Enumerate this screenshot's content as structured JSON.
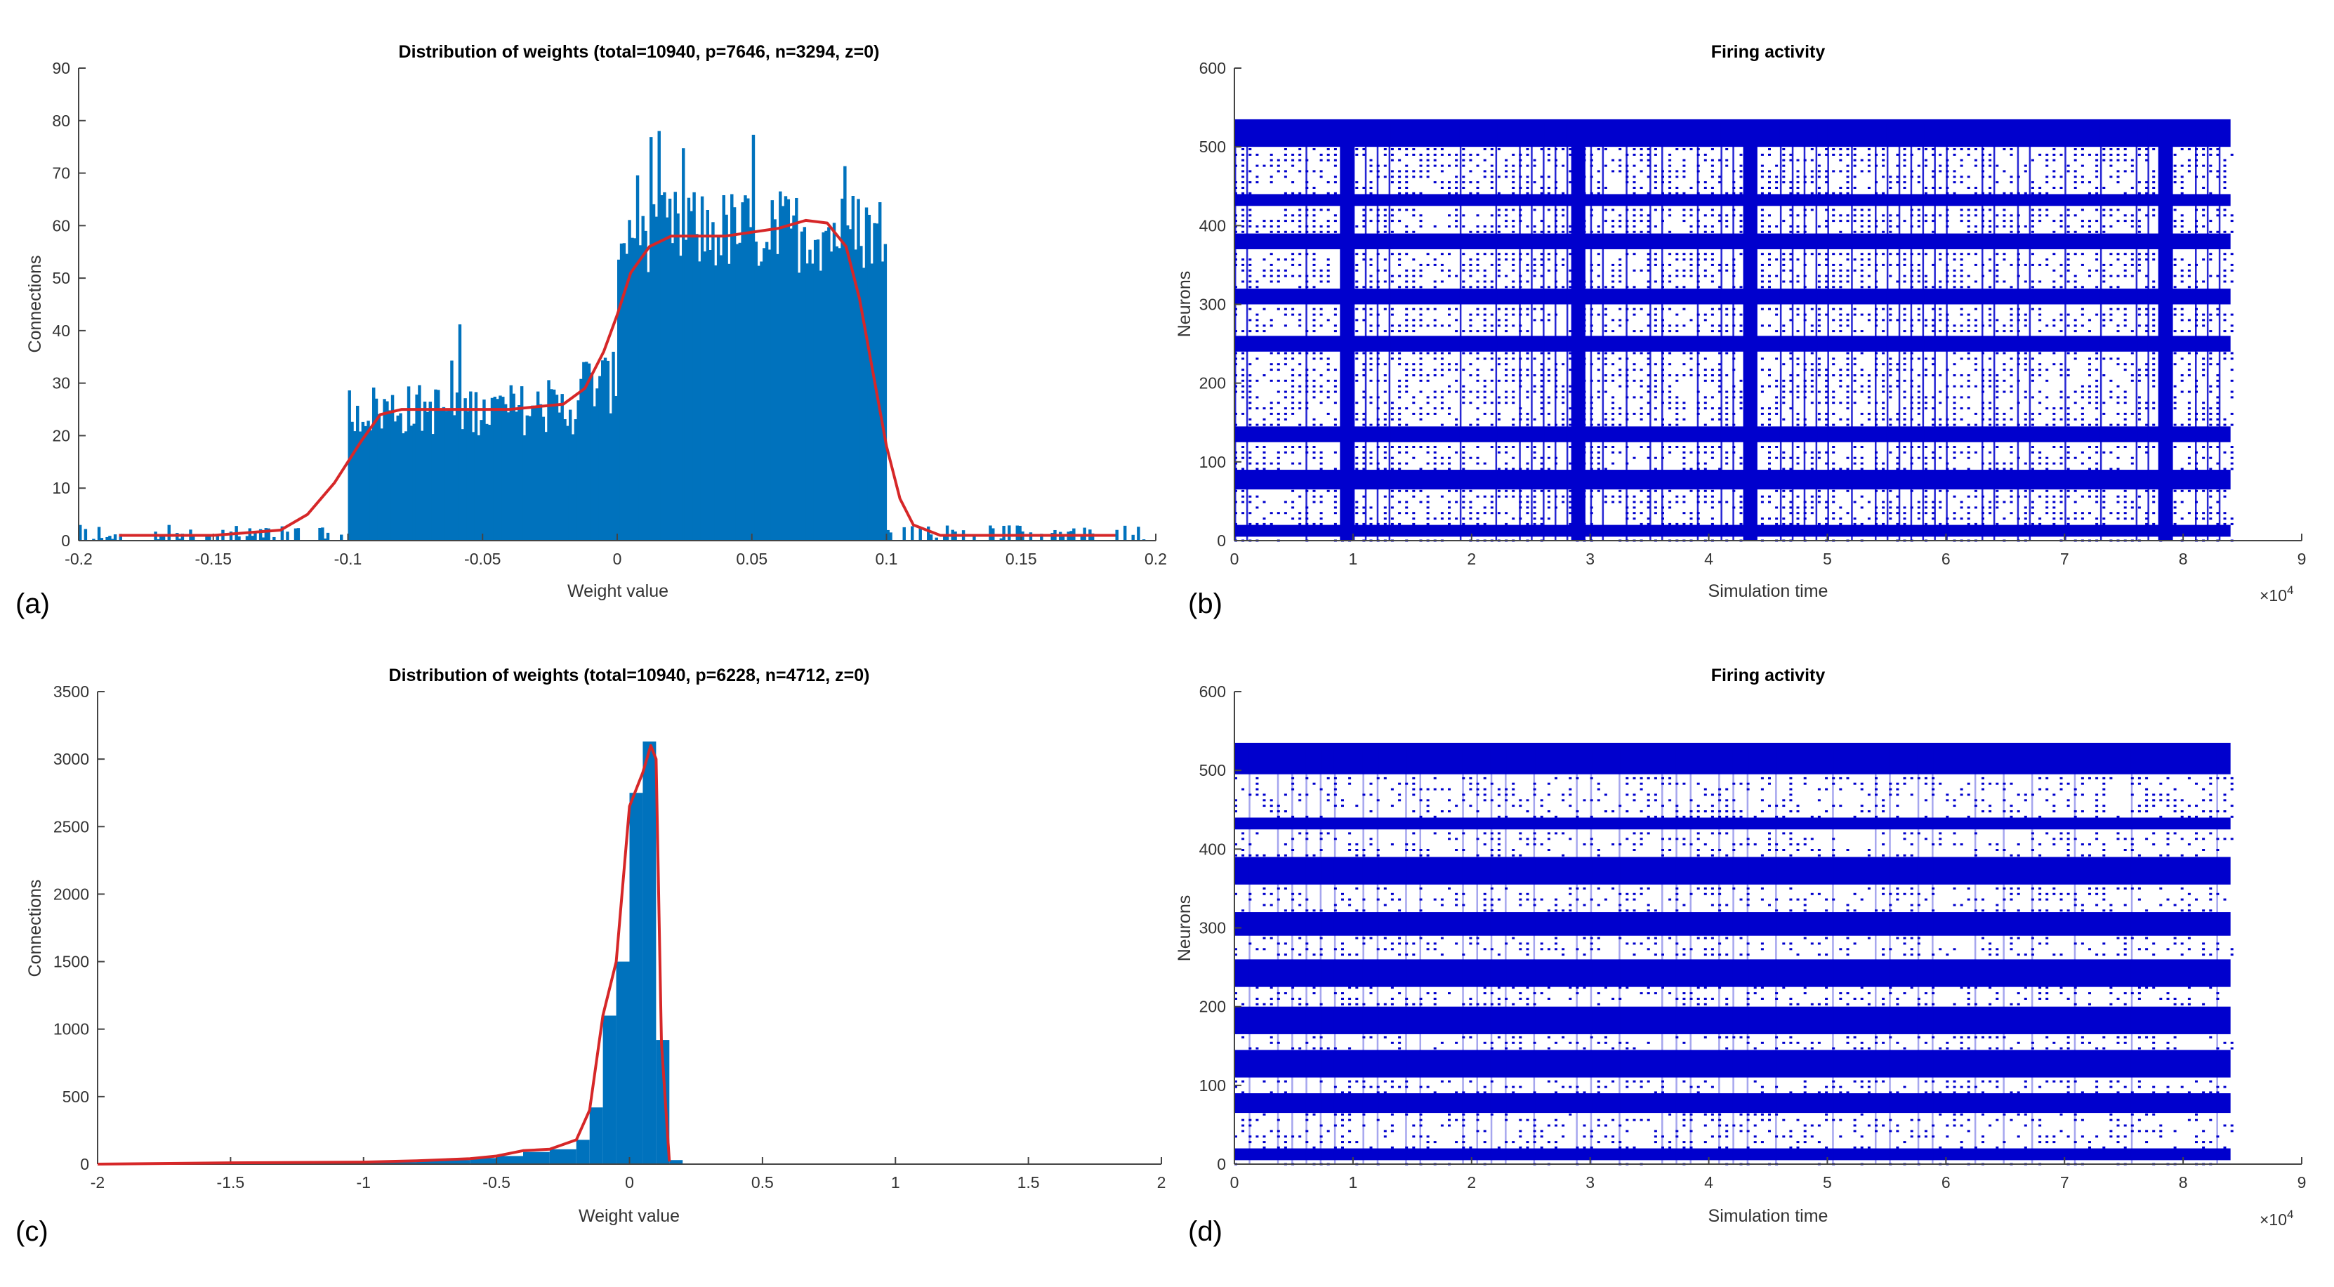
{
  "panel_labels": [
    "(a)",
    "(b)",
    "(c)",
    "(d)"
  ],
  "chart_data": [
    {
      "id": "a",
      "type": "bar",
      "title": "Distribution of weights (total=10940, p=7646, n=3294, z=0)",
      "xlabel": "Weight value",
      "ylabel": "Connections",
      "xlim": [
        -0.2,
        0.2
      ],
      "ylim": [
        0,
        90
      ],
      "xticks": [
        -0.2,
        -0.15,
        -0.1,
        -0.05,
        0,
        0.05,
        0.1,
        0.15,
        0.2
      ],
      "xtick_labels": [
        "-0.2",
        "-0.15",
        "-0.1",
        "-0.05",
        "0",
        "0.05",
        "0.1",
        "0.15",
        "0.2"
      ],
      "yticks": [
        0,
        10,
        20,
        30,
        40,
        50,
        60,
        70,
        80,
        90
      ],
      "ytick_labels": [
        "0",
        "10",
        "20",
        "30",
        "40",
        "50",
        "60",
        "70",
        "80",
        "90"
      ],
      "bar_color": "#0072bd",
      "curve_color": "#d62728",
      "histogram_segments": [
        {
          "from": -0.2,
          "to": -0.1,
          "mean": 1,
          "spread": 1.5
        },
        {
          "from": -0.1,
          "to": -0.015,
          "mean": 25,
          "spread": 5
        },
        {
          "from": -0.015,
          "to": 0.0,
          "mean": 30,
          "spread": 6
        },
        {
          "from": 0.0,
          "to": 0.1,
          "mean": 59,
          "spread": 8
        },
        {
          "from": 0.1,
          "to": 0.2,
          "mean": 1,
          "spread": 1.5
        }
      ],
      "curve": {
        "x": [
          -0.185,
          -0.15,
          -0.125,
          -0.115,
          -0.105,
          -0.095,
          -0.088,
          -0.08,
          -0.06,
          -0.04,
          -0.02,
          -0.012,
          -0.005,
          0.0,
          0.005,
          0.012,
          0.02,
          0.04,
          0.06,
          0.07,
          0.078,
          0.085,
          0.09,
          0.095,
          0.1,
          0.105,
          0.11,
          0.12,
          0.15,
          0.185
        ],
        "y": [
          1,
          1,
          2,
          5,
          11,
          19,
          24,
          25,
          25,
          25,
          26,
          29,
          36,
          43,
          51,
          56,
          58,
          58,
          59.5,
          61,
          60.5,
          56,
          46,
          32,
          18,
          8,
          3,
          1,
          1,
          1
        ]
      }
    },
    {
      "id": "b",
      "type": "scatter",
      "title": "Firing activity",
      "xlabel": "Simulation time",
      "ylabel": "Neurons",
      "exponent_label": "×10",
      "exponent_power": "4",
      "xlim": [
        0,
        9
      ],
      "ylim": [
        0,
        600
      ],
      "xticks": [
        0,
        1,
        2,
        3,
        4,
        5,
        6,
        7,
        8,
        9
      ],
      "xtick_labels": [
        "0",
        "1",
        "2",
        "3",
        "4",
        "5",
        "6",
        "7",
        "8",
        "9"
      ],
      "yticks": [
        0,
        100,
        200,
        300,
        400,
        500,
        600
      ],
      "ytick_labels": [
        "0",
        "100",
        "200",
        "300",
        "400",
        "500",
        "600"
      ],
      "marker_color": "#0000cd",
      "time_range": [
        0,
        8.4
      ],
      "neuron_range": [
        0,
        530
      ],
      "dense_neuron_bands": [
        [
          5,
          20
        ],
        [
          65,
          90
        ],
        [
          125,
          145
        ],
        [
          240,
          260
        ],
        [
          300,
          320
        ],
        [
          370,
          390
        ],
        [
          425,
          440
        ],
        [
          500,
          535
        ]
      ],
      "dense_time_columns": [
        0.95,
        2.9,
        4.35,
        7.85
      ]
    },
    {
      "id": "c",
      "type": "bar",
      "title": "Distribution of weights (total=10940, p=6228, n=4712, z=0)",
      "xlabel": "Weight value",
      "ylabel": "Connections",
      "xlim": [
        -2,
        2
      ],
      "ylim": [
        0,
        3500
      ],
      "xticks": [
        -2,
        -1.5,
        -1,
        -0.5,
        0,
        0.5,
        1,
        1.5,
        2
      ],
      "xtick_labels": [
        "-2",
        "-1.5",
        "-1",
        "-0.5",
        "0",
        "0.5",
        "1",
        "1.5",
        "2"
      ],
      "yticks": [
        0,
        500,
        1000,
        1500,
        2000,
        2500,
        3000,
        3500
      ],
      "ytick_labels": [
        "0",
        "500",
        "1000",
        "1500",
        "2000",
        "2500",
        "3000",
        "3500"
      ],
      "bar_color": "#0072bd",
      "curve_color": "#d62728",
      "bins": [
        {
          "x0": -2.0,
          "x1": -1.5,
          "v": 10
        },
        {
          "x0": -1.5,
          "x1": -1.0,
          "v": 15
        },
        {
          "x0": -1.0,
          "x1": -0.8,
          "v": 15
        },
        {
          "x0": -0.8,
          "x1": -0.6,
          "v": 30
        },
        {
          "x0": -0.6,
          "x1": -0.5,
          "v": 45
        },
        {
          "x0": -0.5,
          "x1": -0.4,
          "v": 60
        },
        {
          "x0": -0.4,
          "x1": -0.3,
          "v": 90
        },
        {
          "x0": -0.3,
          "x1": -0.2,
          "v": 110
        },
        {
          "x0": -0.2,
          "x1": -0.15,
          "v": 180
        },
        {
          "x0": -0.15,
          "x1": -0.1,
          "v": 420
        },
        {
          "x0": -0.1,
          "x1": -0.05,
          "v": 1100
        },
        {
          "x0": -0.05,
          "x1": 0.0,
          "v": 1500
        },
        {
          "x0": 0.0,
          "x1": 0.05,
          "v": 2750
        },
        {
          "x0": 0.05,
          "x1": 0.1,
          "v": 3130
        },
        {
          "x0": 0.1,
          "x1": 0.15,
          "v": 920
        },
        {
          "x0": 0.15,
          "x1": 0.2,
          "v": 30
        }
      ],
      "curve": {
        "x": [
          -2.0,
          -1.5,
          -1.0,
          -0.8,
          -0.6,
          -0.5,
          -0.4,
          -0.3,
          -0.2,
          -0.15,
          -0.1,
          -0.05,
          0.0,
          0.05,
          0.08,
          0.1,
          0.12,
          0.15
        ],
        "y": [
          0,
          10,
          15,
          25,
          40,
          60,
          100,
          110,
          180,
          400,
          1100,
          1500,
          2650,
          2900,
          3100,
          3000,
          900,
          20
        ]
      }
    },
    {
      "id": "d",
      "type": "scatter",
      "title": "Firing activity",
      "xlabel": "Simulation time",
      "ylabel": "Neurons",
      "exponent_label": "×10",
      "exponent_power": "4",
      "xlim": [
        0,
        9
      ],
      "ylim": [
        0,
        600
      ],
      "xticks": [
        0,
        1,
        2,
        3,
        4,
        5,
        6,
        7,
        8,
        9
      ],
      "xtick_labels": [
        "0",
        "1",
        "2",
        "3",
        "4",
        "5",
        "6",
        "7",
        "8",
        "9"
      ],
      "yticks": [
        0,
        100,
        200,
        300,
        400,
        500,
        600
      ],
      "ytick_labels": [
        "0",
        "100",
        "200",
        "300",
        "400",
        "500",
        "600"
      ],
      "marker_color": "#0000cd",
      "time_range": [
        0,
        8.4
      ],
      "neuron_range": [
        0,
        530
      ],
      "dense_neuron_bands": [
        [
          5,
          20
        ],
        [
          65,
          90
        ],
        [
          110,
          145
        ],
        [
          165,
          200
        ],
        [
          225,
          260
        ],
        [
          290,
          320
        ],
        [
          355,
          390
        ],
        [
          425,
          440
        ],
        [
          495,
          535
        ]
      ],
      "dense_time_columns": []
    }
  ]
}
